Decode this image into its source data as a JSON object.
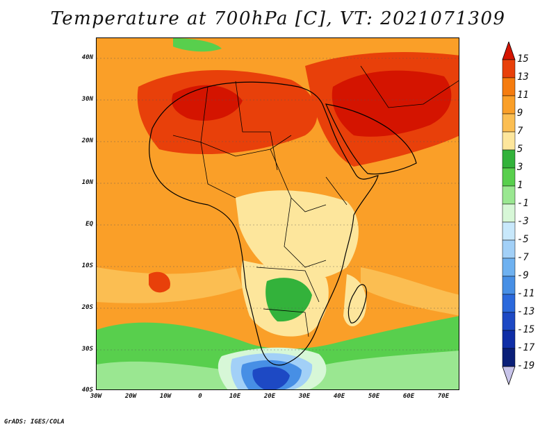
{
  "title": "Temperature at 700hPa [C], VT: 2021071309",
  "credit": "GrADS: IGES/COLA",
  "map": {
    "lat_labels": [
      "40N",
      "30N",
      "20N",
      "10N",
      "EQ",
      "10S",
      "20S",
      "30S",
      "40S"
    ],
    "lon_labels": [
      "30W",
      "20W",
      "10W",
      "0",
      "10E",
      "20E",
      "30E",
      "40E",
      "50E",
      "60E",
      "70E"
    ],
    "colors": {
      "c15": "#d41400",
      "c13": "#e8400a",
      "c11": "#f57c0f",
      "c9": "#fa9f28",
      "c7": "#fbbe52",
      "c5": "#fde69c",
      "c3": "#33b23b",
      "c1": "#58cf4d",
      "cm1": "#9ae791",
      "cm3": "#d7f7d7",
      "cm5": "#c8e8fb",
      "cm7": "#a2d0f7",
      "cm9": "#6eb1f0",
      "cm11": "#478fe5",
      "cm13": "#2b69dc",
      "cm15": "#1d49c4",
      "cm17": "#0f2ea6",
      "cm19": "#0a1f78"
    }
  },
  "colorbar": {
    "labels": [
      "15",
      "13",
      "11",
      "9",
      "7",
      "5",
      "3",
      "1",
      "-1",
      "-3",
      "-5",
      "-7",
      "-9",
      "-11",
      "-13",
      "-15",
      "-17",
      "-19"
    ],
    "colors": [
      "#d41400",
      "#e8400a",
      "#f57c0f",
      "#fa9f28",
      "#fbbe52",
      "#fde69c",
      "#33b23b",
      "#58cf4d",
      "#9ae791",
      "#d7f7d7",
      "#c8e8fb",
      "#a2d0f7",
      "#6eb1f0",
      "#478fe5",
      "#2b69dc",
      "#1d49c4",
      "#0f2ea6",
      "#0a1f78",
      "#c8c4ea"
    ]
  }
}
